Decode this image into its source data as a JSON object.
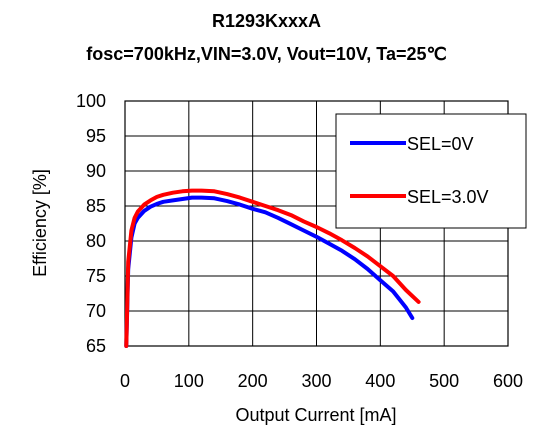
{
  "chart_data": {
    "type": "line",
    "title": "R1293KxxxA",
    "subtitle": "fosc=700kHz,VIN=3.0V, Vout=10V, Ta=25℃",
    "xlabel": "Output Current [mA]",
    "ylabel": "Efficiency [%]",
    "xlim": [
      0,
      600
    ],
    "ylim": [
      65,
      100
    ],
    "x_ticks": [
      "0",
      "100",
      "200",
      "300",
      "400",
      "500",
      "600"
    ],
    "y_ticks": [
      "65",
      "70",
      "75",
      "80",
      "85",
      "90",
      "95",
      "100"
    ],
    "x_tick_values": [
      0,
      100,
      200,
      300,
      400,
      500,
      600
    ],
    "y_tick_values": [
      65,
      70,
      75,
      80,
      85,
      90,
      95,
      100
    ],
    "grid": true,
    "legend_position": "top-right",
    "series": [
      {
        "name": "SEL=0V",
        "color": "#0000ff",
        "x": [
          2,
          5,
          10,
          15,
          20,
          30,
          40,
          50,
          60,
          75,
          90,
          105,
          120,
          140,
          160,
          180,
          200,
          220,
          240,
          260,
          280,
          300,
          320,
          340,
          360,
          380,
          400,
          420,
          440,
          450
        ],
        "y": [
          65,
          76,
          80.5,
          82.5,
          83.3,
          84.3,
          84.9,
          85.3,
          85.6,
          85.8,
          86.0,
          86.2,
          86.2,
          86.1,
          85.7,
          85.2,
          84.6,
          84.1,
          83.3,
          82.4,
          81.5,
          80.6,
          79.6,
          78.6,
          77.4,
          76.0,
          74.4,
          72.8,
          70.5,
          69.0
        ]
      },
      {
        "name": "SEL=3.0V",
        "color": "#ff0000",
        "x": [
          2,
          5,
          10,
          15,
          20,
          30,
          40,
          50,
          60,
          75,
          90,
          105,
          120,
          140,
          160,
          180,
          200,
          220,
          240,
          260,
          280,
          300,
          320,
          340,
          360,
          380,
          400,
          420,
          440,
          460
        ],
        "y": [
          65,
          77,
          81.5,
          83.3,
          84.2,
          85.2,
          85.8,
          86.3,
          86.6,
          86.9,
          87.1,
          87.2,
          87.2,
          87.1,
          86.7,
          86.2,
          85.6,
          85.0,
          84.4,
          83.7,
          82.8,
          82.0,
          81.1,
          80.1,
          79.0,
          77.8,
          76.4,
          75.0,
          73.0,
          71.3
        ]
      }
    ]
  }
}
